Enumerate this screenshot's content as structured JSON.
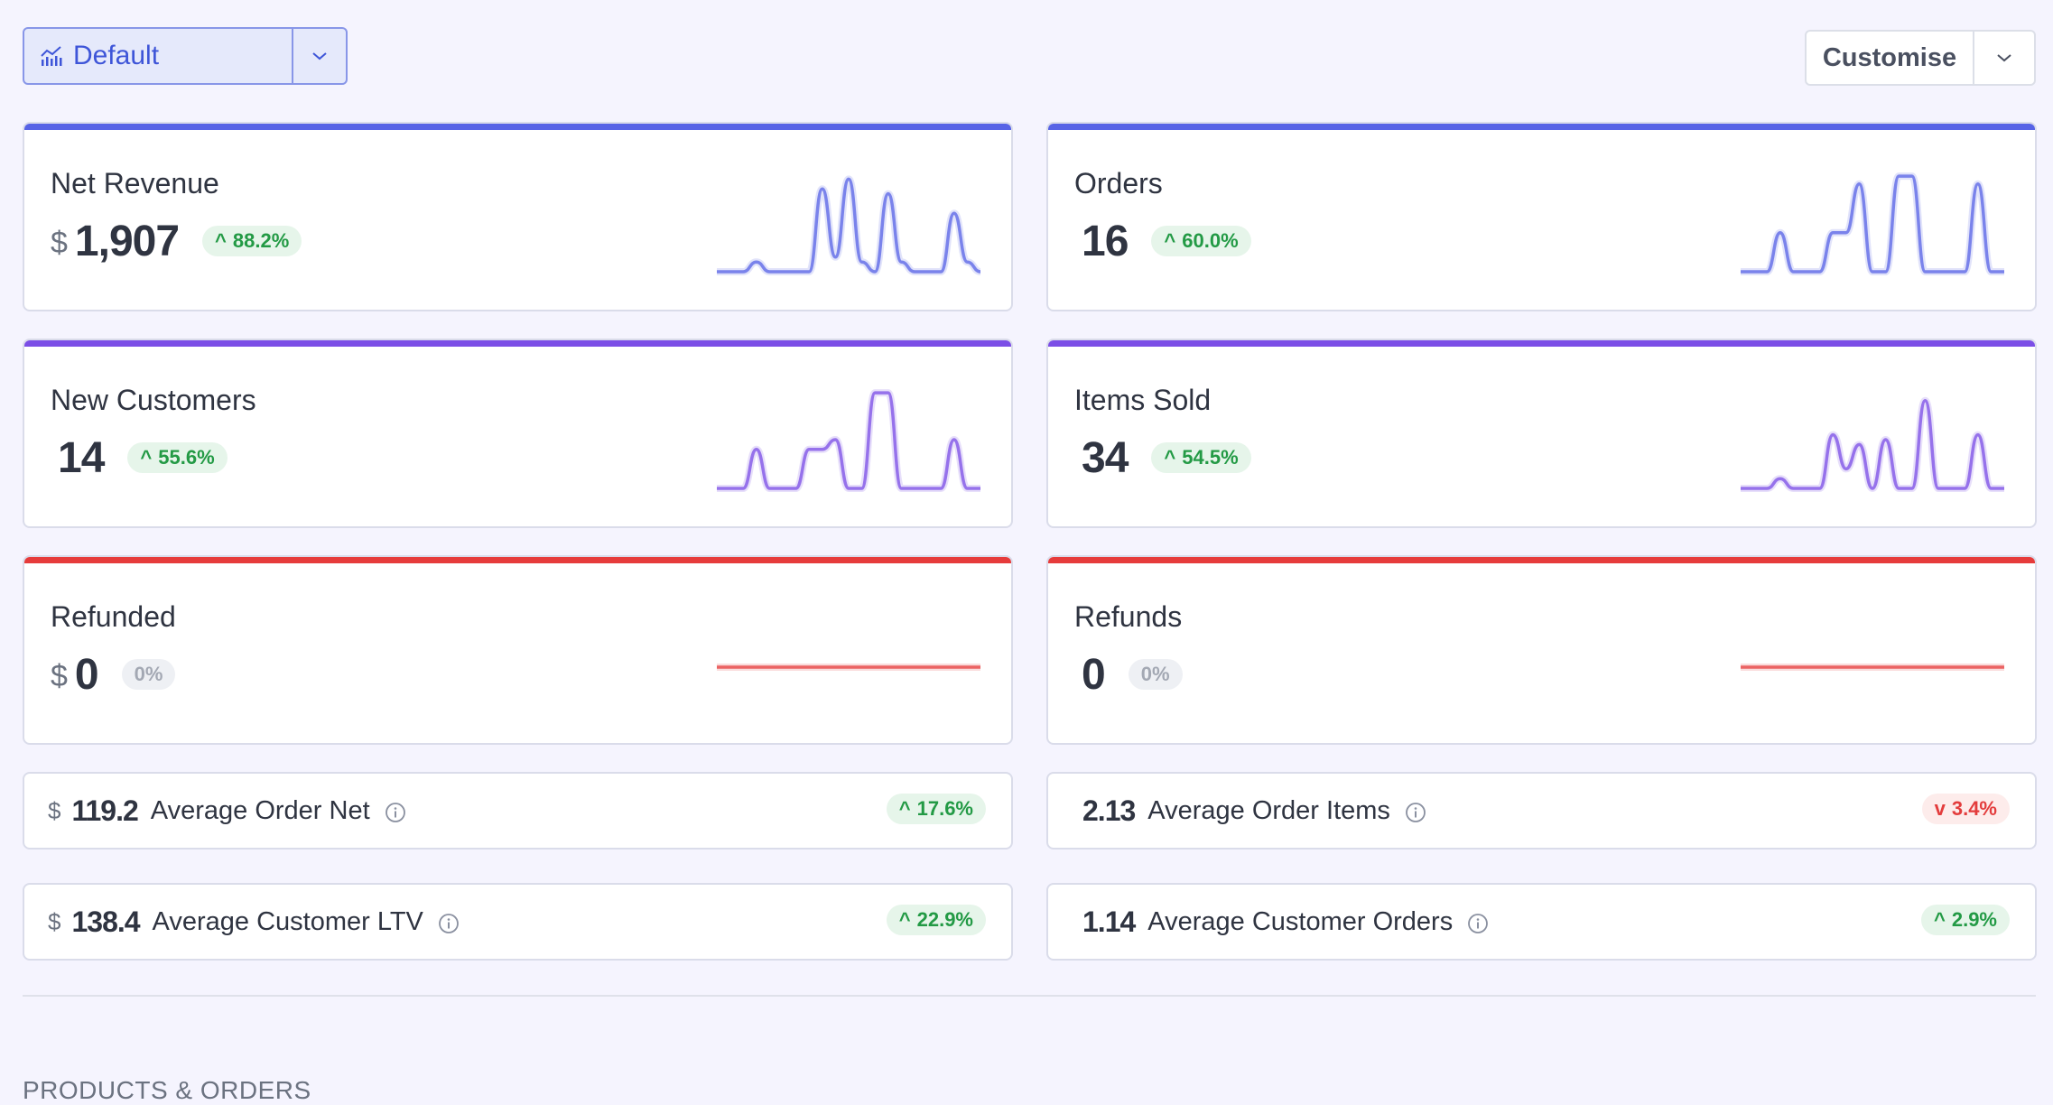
{
  "toolbar": {
    "view_label": "Default",
    "customise_label": "Customise"
  },
  "cards": [
    {
      "title": "Net Revenue",
      "currency": "$",
      "value": "1,907",
      "change": "88.2%",
      "trend": "up",
      "color": "#5763e6",
      "spark": [
        0,
        0,
        0,
        0.1,
        0,
        0,
        0,
        0,
        0.85,
        0.15,
        0.95,
        0.1,
        0,
        0.8,
        0.1,
        0,
        0,
        0,
        0.6,
        0.1,
        0
      ]
    },
    {
      "title": "Orders",
      "currency": "",
      "value": "16",
      "change": "60.0%",
      "trend": "up",
      "color": "#5763e6",
      "spark": [
        0,
        0,
        0,
        0.4,
        0,
        0,
        0,
        0.4,
        0.4,
        0.9,
        0,
        0,
        0.98,
        0.98,
        0,
        0,
        0,
        0,
        0.9,
        0,
        0
      ]
    },
    {
      "title": "New Customers",
      "currency": "",
      "value": "14",
      "change": "55.6%",
      "trend": "up",
      "color": "#7b4ee6",
      "spark": [
        0,
        0,
        0,
        0.4,
        0,
        0,
        0,
        0.4,
        0.4,
        0.5,
        0,
        0,
        0.98,
        0.98,
        0,
        0,
        0,
        0,
        0.5,
        0,
        0
      ]
    },
    {
      "title": "Items Sold",
      "currency": "",
      "value": "34",
      "change": "54.5%",
      "trend": "up",
      "color": "#7b4ee6",
      "spark": [
        0,
        0,
        0,
        0.1,
        0,
        0,
        0,
        0.55,
        0.2,
        0.45,
        0,
        0.5,
        0,
        0,
        0.9,
        0,
        0,
        0,
        0.55,
        0,
        0
      ]
    },
    {
      "title": "Refunded",
      "currency": "$",
      "value": "0",
      "change": "0%",
      "trend": "neutral",
      "color": "#e63b3b",
      "spark": [
        0,
        0,
        0,
        0,
        0,
        0,
        0,
        0,
        0,
        0,
        0,
        0,
        0,
        0,
        0,
        0,
        0,
        0,
        0,
        0,
        0
      ]
    },
    {
      "title": "Refunds",
      "currency": "",
      "value": "0",
      "change": "0%",
      "trend": "neutral",
      "color": "#e63b3b",
      "spark": [
        0,
        0,
        0,
        0,
        0,
        0,
        0,
        0,
        0,
        0,
        0,
        0,
        0,
        0,
        0,
        0,
        0,
        0,
        0,
        0,
        0
      ]
    }
  ],
  "stats": [
    {
      "currency": "$",
      "value": "119.2",
      "label": "Average Order Net",
      "change": "17.6%",
      "trend": "up"
    },
    {
      "currency": "",
      "value": "2.13",
      "label": "Average Order Items",
      "change": "3.4%",
      "trend": "down"
    },
    {
      "currency": "$",
      "value": "138.4",
      "label": "Average Customer LTV",
      "change": "22.9%",
      "trend": "up"
    },
    {
      "currency": "",
      "value": "1.14",
      "label": "Average Customer Orders",
      "change": "2.9%",
      "trend": "up"
    }
  ],
  "section": {
    "title": "PRODUCTS & ORDERS"
  },
  "colors": {
    "accent": "#3e55d8",
    "up": "#239a45",
    "down": "#e33c3c",
    "revenue": "#5763e6",
    "customers": "#7b4ee6",
    "refunds": "#e63b3b"
  }
}
